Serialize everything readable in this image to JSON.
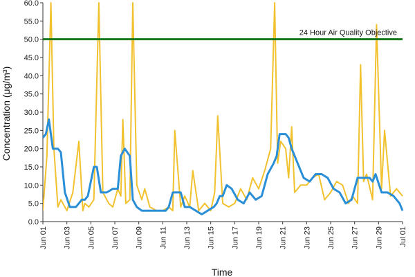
{
  "chart_data": {
    "type": "line",
    "xlabel": "Time",
    "ylabel": "Concentration (μg/m³)",
    "ylim": [
      0,
      60
    ],
    "y_ticks": [
      "0.0",
      "5.0",
      "10.0",
      "15.0",
      "20.0",
      "25.0",
      "30.0",
      "35.0",
      "40.0",
      "45.0",
      "50.0",
      "55.0",
      "60.0"
    ],
    "x_ticks": [
      "Jun 01",
      "Jun 03",
      "Jun 05",
      "Jun 07",
      "Jun 09",
      "Jun 11",
      "Jun 13",
      "Jun 15",
      "Jun 17",
      "Jun 19",
      "Jun 21",
      "Jun 23",
      "Jun 25",
      "Jun 27",
      "Jun 29",
      "Jul 01"
    ],
    "grid": false,
    "reference_line": {
      "label": "24 Hour Air Quality Objective",
      "value": 50,
      "color": "#1a7a1a"
    },
    "series": [
      {
        "kind": "hourly",
        "color": "#f2c12e",
        "x": [
          "Jun 01 00:00",
          "Jun 01 08:00",
          "Jun 01 16:00",
          "Jun 01 22:00",
          "Jun 02 06:00",
          "Jun 02 12:00",
          "Jun 03 00:00",
          "Jun 03 12:00",
          "Jun 04 00:00",
          "Jun 04 08:00",
          "Jun 04 12:00",
          "Jun 04 20:00",
          "Jun 05 06:00",
          "Jun 05 16:00",
          "Jun 06 00:00",
          "Jun 06 12:00",
          "Jun 06 20:00",
          "Jun 07 06:00",
          "Jun 07 12:00",
          "Jun 07 16:00",
          "Jun 07 22:00",
          "Jun 08 06:00",
          "Jun 08 12:00",
          "Jun 08 20:00",
          "Jun 09 06:00",
          "Jun 09 12:00",
          "Jun 09 22:00",
          "Jun 10 12:00",
          "Jun 11 00:00",
          "Jun 11 12:00",
          "Jun 11 20:00",
          "Jun 12 00:00",
          "Jun 12 12:00",
          "Jun 12 20:00",
          "Jun 13 06:00",
          "Jun 13 12:00",
          "Jun 14 00:00",
          "Jun 14 12:00",
          "Jun 15 00:00",
          "Jun 15 08:00",
          "Jun 15 14:00",
          "Jun 16 00:00",
          "Jun 16 12:00",
          "Jun 17 00:00",
          "Jun 17 12:00",
          "Jun 18 00:00",
          "Jun 18 12:00",
          "Jun 19 00:00",
          "Jun 19 12:00",
          "Jun 20 00:00",
          "Jun 20 08:00",
          "Jun 20 14:00",
          "Jun 20 20:00",
          "Jun 21 06:00",
          "Jun 21 12:00",
          "Jun 21 18:00",
          "Jun 22 00:00",
          "Jun 22 12:00",
          "Jun 23 00:00",
          "Jun 23 12:00",
          "Jun 24 00:00",
          "Jun 24 12:00",
          "Jun 25 00:00",
          "Jun 25 12:00",
          "Jun 26 00:00",
          "Jun 26 12:00",
          "Jun 26 20:00",
          "Jun 27 06:00",
          "Jun 27 12:00",
          "Jun 27 18:00",
          "Jun 28 00:00",
          "Jun 28 12:00",
          "Jun 28 20:00",
          "Jun 29 06:00",
          "Jun 29 12:00",
          "Jun 30 00:00",
          "Jun 30 12:00",
          "Jul 01 00:00"
        ],
        "values": [
          3,
          18,
          60,
          20,
          4,
          6,
          3,
          8,
          22,
          3,
          5,
          4,
          6,
          60,
          8,
          5,
          4,
          9,
          7,
          28,
          5,
          6,
          60,
          10,
          6,
          9,
          4,
          3,
          3,
          4,
          3,
          25,
          4,
          7,
          4,
          14,
          3,
          5,
          3,
          8,
          29,
          5,
          4,
          5,
          9,
          6,
          12,
          9,
          14,
          20,
          60,
          16,
          22,
          20,
          12,
          26,
          8,
          10,
          10,
          12,
          13,
          6,
          8,
          11,
          10,
          5,
          7,
          5,
          43,
          11,
          13,
          6,
          54,
          9,
          25,
          7,
          9,
          7
        ]
      },
      {
        "kind": "24-hour running mean",
        "color": "#2b8fd8",
        "x": [
          "Jun 01 00:00",
          "Jun 01 06:00",
          "Jun 01 12:00",
          "Jun 01 20:00",
          "Jun 02 06:00",
          "Jun 02 12:00",
          "Jun 02 20:00",
          "Jun 03 06:00",
          "Jun 03 18:00",
          "Jun 04 06:00",
          "Jun 04 12:00",
          "Jun 04 18:00",
          "Jun 05 06:00",
          "Jun 05 12:00",
          "Jun 05 20:00",
          "Jun 06 08:00",
          "Jun 06 20:00",
          "Jun 07 06:00",
          "Jun 07 12:00",
          "Jun 07 20:00",
          "Jun 08 06:00",
          "Jun 08 12:00",
          "Jun 08 20:00",
          "Jun 09 06:00",
          "Jun 09 18:00",
          "Jun 10 06:00",
          "Jun 10 18:00",
          "Jun 11 06:00",
          "Jun 11 12:00",
          "Jun 11 20:00",
          "Jun 12 06:00",
          "Jun 12 12:00",
          "Jun 12 20:00",
          "Jun 13 06:00",
          "Jun 13 18:00",
          "Jun 14 06:00",
          "Jun 14 18:00",
          "Jun 15 06:00",
          "Jun 15 12:00",
          "Jun 15 18:00",
          "Jun 16 00:00",
          "Jun 16 08:00",
          "Jun 16 18:00",
          "Jun 17 06:00",
          "Jun 17 18:00",
          "Jun 18 06:00",
          "Jun 18 18:00",
          "Jun 19 06:00",
          "Jun 19 18:00",
          "Jun 20 06:00",
          "Jun 20 12:00",
          "Jun 20 18:00",
          "Jun 21 00:00",
          "Jun 21 06:00",
          "Jun 21 12:00",
          "Jun 21 18:00",
          "Jun 22 06:00",
          "Jun 22 18:00",
          "Jun 23 06:00",
          "Jun 23 18:00",
          "Jun 24 06:00",
          "Jun 24 18:00",
          "Jun 25 06:00",
          "Jun 25 18:00",
          "Jun 26 06:00",
          "Jun 26 18:00",
          "Jun 27 06:00",
          "Jun 27 18:00",
          "Jun 28 06:00",
          "Jun 28 12:00",
          "Jun 28 18:00",
          "Jun 29 06:00",
          "Jun 29 18:00",
          "Jun 30 06:00",
          "Jun 30 18:00",
          "Jul 01 00:00"
        ],
        "values": [
          23,
          24,
          28,
          20,
          20,
          19,
          8,
          4,
          4,
          6,
          6,
          7,
          15,
          15,
          8,
          8,
          9,
          9,
          18,
          20,
          18,
          6,
          4,
          3,
          3,
          3,
          3,
          3,
          4,
          8,
          8,
          8,
          4,
          4,
          3,
          2,
          3,
          4,
          5,
          7,
          7,
          10,
          9,
          6,
          5,
          8,
          6,
          7,
          13,
          16,
          18,
          24,
          24,
          24,
          23,
          20,
          16,
          12,
          11,
          13,
          13,
          12,
          9,
          8,
          5,
          6,
          12,
          12,
          12,
          11,
          13,
          8,
          8,
          7,
          5,
          3
        ]
      }
    ]
  }
}
